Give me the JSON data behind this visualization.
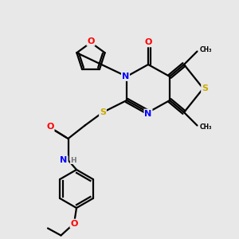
{
  "bg_color": "#e8e8e8",
  "atom_colors": {
    "O": "#ff0000",
    "N": "#0000ff",
    "S": "#ccaa00",
    "C": "#000000",
    "H": "#777777"
  },
  "bond_color": "#000000",
  "bond_width": 1.6
}
